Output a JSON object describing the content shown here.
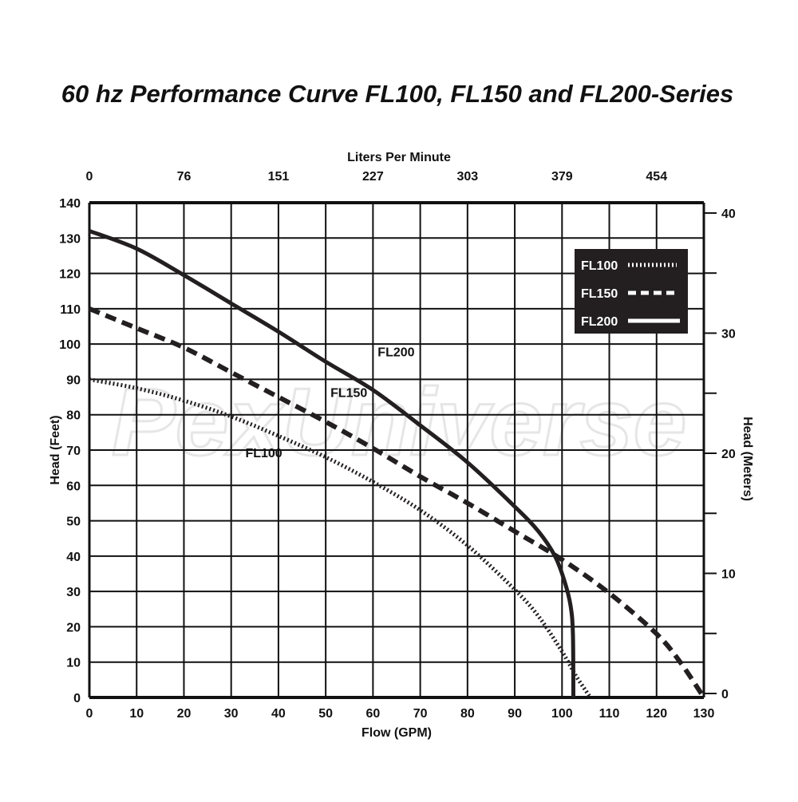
{
  "chart_data": {
    "type": "line",
    "title": "60 hz  Performance Curve FL100, FL150 and FL200-Series",
    "xlabel": "Flow (GPM)",
    "ylabel": "Head (Feet)",
    "x2label": "Liters Per Minute",
    "y2label": "Head (Meters)",
    "xlim": [
      0,
      130
    ],
    "ylim": [
      0,
      140
    ],
    "y2lim": [
      -0.33,
      40.86
    ],
    "grid": true,
    "xticks": [
      0,
      10,
      20,
      30,
      40,
      50,
      60,
      70,
      80,
      90,
      100,
      110,
      120,
      130
    ],
    "yticks": [
      0,
      10,
      20,
      30,
      40,
      50,
      60,
      70,
      80,
      90,
      100,
      110,
      120,
      130,
      140
    ],
    "x2ticks": [
      {
        "gpm": 0,
        "label": "0"
      },
      {
        "gpm": 20,
        "label": "76"
      },
      {
        "gpm": 40,
        "label": "151"
      },
      {
        "gpm": 60,
        "label": "227"
      },
      {
        "gpm": 80,
        "label": "303"
      },
      {
        "gpm": 100,
        "label": "379"
      },
      {
        "gpm": 120,
        "label": "454"
      }
    ],
    "y2ticks": [
      0,
      5,
      10,
      15,
      20,
      25,
      30,
      35,
      40
    ],
    "y2ticklabels": [
      "0",
      "",
      "10",
      "",
      "20",
      "",
      "30",
      "",
      "40"
    ],
    "legend_position": "top-right",
    "series": [
      {
        "name": "FL100",
        "style": "dotted",
        "label": "FL100",
        "label_at": [
          33,
          68
        ],
        "points": [
          [
            0,
            90
          ],
          [
            10,
            87.5
          ],
          [
            20,
            84
          ],
          [
            30,
            79.5
          ],
          [
            40,
            74
          ],
          [
            50,
            68
          ],
          [
            60,
            61
          ],
          [
            70,
            53
          ],
          [
            80,
            43
          ],
          [
            90,
            30.5
          ],
          [
            95,
            23
          ],
          [
            100,
            13
          ],
          [
            103,
            6
          ],
          [
            106,
            0
          ]
        ]
      },
      {
        "name": "FL150",
        "style": "dashed",
        "label": "FL150",
        "label_at": [
          51,
          85
        ],
        "points": [
          [
            0,
            110
          ],
          [
            10,
            104.5
          ],
          [
            20,
            99
          ],
          [
            30,
            92
          ],
          [
            40,
            85
          ],
          [
            50,
            78
          ],
          [
            60,
            70.5
          ],
          [
            70,
            62.5
          ],
          [
            80,
            55
          ],
          [
            90,
            47
          ],
          [
            100,
            39
          ],
          [
            110,
            29.5
          ],
          [
            120,
            18
          ],
          [
            125,
            10
          ],
          [
            130,
            0
          ]
        ]
      },
      {
        "name": "FL200",
        "style": "solid",
        "label": "FL200",
        "label_at": [
          61,
          96.5
        ],
        "points": [
          [
            0,
            132
          ],
          [
            10,
            127
          ],
          [
            20,
            119.5
          ],
          [
            30,
            111.5
          ],
          [
            40,
            103.5
          ],
          [
            50,
            95
          ],
          [
            60,
            87
          ],
          [
            70,
            77
          ],
          [
            80,
            66.5
          ],
          [
            90,
            54
          ],
          [
            95,
            47
          ],
          [
            98.5,
            40
          ],
          [
            100.5,
            33
          ],
          [
            101.8,
            26
          ],
          [
            102.3,
            18
          ],
          [
            102.4,
            0
          ]
        ]
      }
    ]
  },
  "watermark": "PexUniverse"
}
